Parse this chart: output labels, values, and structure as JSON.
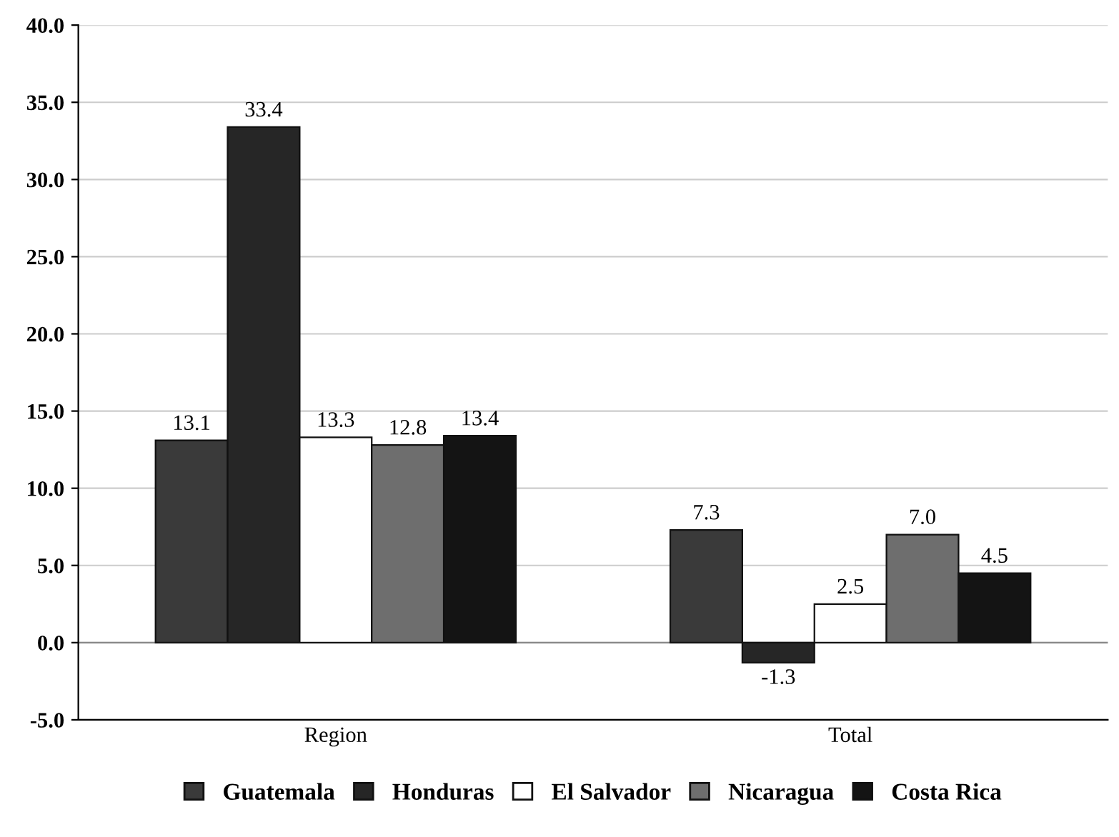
{
  "chart_data": {
    "type": "bar",
    "categories": [
      "Region",
      "Total"
    ],
    "series": [
      {
        "name": "Guatemala",
        "color": "#3a3a3a",
        "values": [
          13.1,
          7.3
        ],
        "value_labels": [
          "13.1",
          "7.3"
        ]
      },
      {
        "name": "Honduras",
        "color": "#262626",
        "values": [
          33.4,
          -1.3
        ],
        "value_labels": [
          "33.4",
          "-1.3"
        ]
      },
      {
        "name": "El Salvador",
        "color": "#ffffff",
        "values": [
          13.3,
          2.5
        ],
        "value_labels": [
          "13.3",
          "2.5"
        ]
      },
      {
        "name": "Nicaragua",
        "color": "#6e6e6e",
        "values": [
          12.8,
          7.0
        ],
        "value_labels": [
          "12.8",
          "7.0"
        ]
      },
      {
        "name": "Costa Rica",
        "color": "#141414",
        "values": [
          13.4,
          4.5
        ],
        "value_labels": [
          "13.4",
          "4.5"
        ]
      }
    ],
    "ylim": [
      -5,
      40
    ],
    "yticks": [
      {
        "value": -5,
        "label": "-5.0"
      },
      {
        "value": 0,
        "label": "0.0"
      },
      {
        "value": 5,
        "label": "5.0"
      },
      {
        "value": 10,
        "label": "10.0"
      },
      {
        "value": 15,
        "label": "15.0"
      },
      {
        "value": 20,
        "label": "20.0"
      },
      {
        "value": 25,
        "label": "25.0"
      },
      {
        "value": 30,
        "label": "30.0"
      },
      {
        "value": 35,
        "label": "35.0"
      },
      {
        "value": 40,
        "label": "40.0"
      }
    ],
    "grid": "y",
    "legend": "bottom"
  }
}
